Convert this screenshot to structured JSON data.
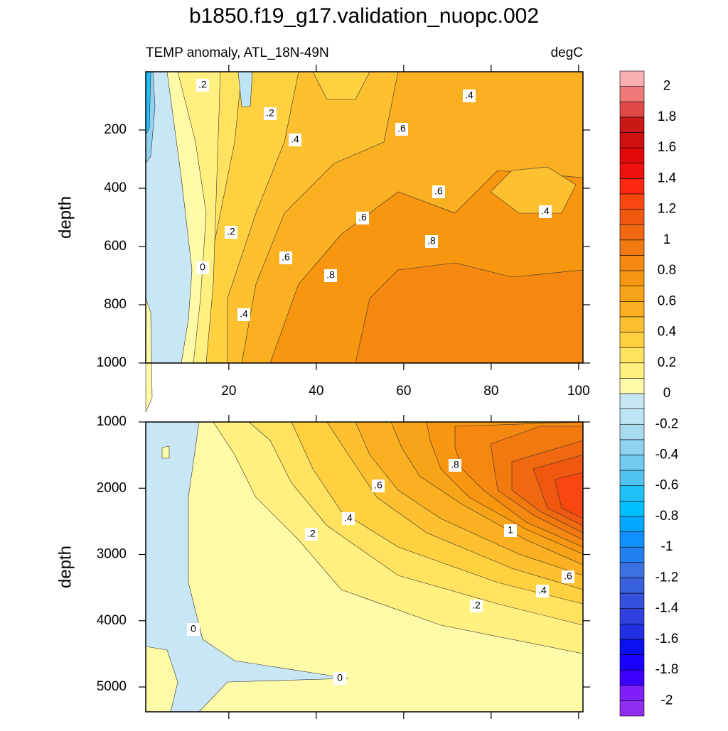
{
  "title": "b1850.f19_g17.validation_nuopc.002",
  "colorbar": {
    "levels": [
      -2.1,
      -2,
      -1.9,
      -1.8,
      -1.7,
      -1.6,
      -1.5,
      -1.4,
      -1.3,
      -1.2,
      -1.1,
      -1,
      -0.9,
      -0.8,
      -0.7,
      -0.6,
      -0.5,
      -0.4,
      -0.3,
      -0.2,
      -0.1,
      0,
      0.1,
      0.2,
      0.3,
      0.4,
      0.5,
      0.6,
      0.7,
      0.8,
      0.9,
      1,
      1.1,
      1.2,
      1.3,
      1.4,
      1.5,
      1.6,
      1.7,
      1.8,
      1.9,
      2,
      2.1
    ],
    "colors": [
      "#8f2ef0",
      "#7f1ff7",
      "#3b00ff",
      "#1a00ff",
      "#0a10f0",
      "#2030e0",
      "#3040e0",
      "#3450dc",
      "#3860dc",
      "#3a70e0",
      "#2080f0",
      "#1090ff",
      "#00a8ff",
      "#00c0ff",
      "#20c0f8",
      "#50c4f0",
      "#70caf0",
      "#90d0f0",
      "#a8daf0",
      "#bce4f4",
      "#c8e6f4",
      "#fffaa8",
      "#fff080",
      "#ffe260",
      "#ffd040",
      "#fcc030",
      "#fab020",
      "#f8a418",
      "#f89610",
      "#f58810",
      "#f27810",
      "#f06810",
      "#f05810",
      "#f84810",
      "#ff2810",
      "#f01010",
      "#e00808",
      "#d01010",
      "#c81818",
      "#e04848",
      "#f07878",
      "#f8b0b0"
    ],
    "ticks": [
      -2,
      -1.8,
      -1.6,
      -1.4,
      -1.2,
      -1,
      -0.8,
      -0.6,
      -0.4,
      -0.2,
      0,
      0.2,
      0.4,
      0.6,
      0.8,
      1,
      1.2,
      1.4,
      1.6,
      1.8,
      2
    ]
  },
  "chart_data": [
    {
      "type": "contour",
      "left_title": "TEMP anomaly, ATL_18N-49N",
      "right_title": "degC",
      "ylabel": "depth",
      "xlim": [
        1,
        101
      ],
      "xticks": [
        20,
        40,
        60,
        80,
        100
      ],
      "ylim": [
        1000,
        0
      ],
      "yticks": [
        200,
        400,
        600,
        800,
        1000
      ],
      "contour_labels": [
        ".2",
        ".2",
        ".4",
        ".6",
        ".4",
        ".6",
        ".6",
        ".4",
        ".2",
        ".8",
        ".6",
        "0",
        ".8",
        ".4"
      ]
    },
    {
      "type": "contour",
      "ylabel": "depth",
      "xlim": [
        1,
        101
      ],
      "xticks": [
        20,
        40,
        60,
        80,
        100
      ],
      "ylim": [
        5375,
        1000
      ],
      "yticks": [
        1000,
        2000,
        3000,
        4000,
        5000
      ],
      "contour_labels": [
        ".8",
        ".6",
        ".4",
        ".2",
        "1",
        ".6",
        ".4",
        ".2",
        "0",
        "0"
      ]
    }
  ]
}
